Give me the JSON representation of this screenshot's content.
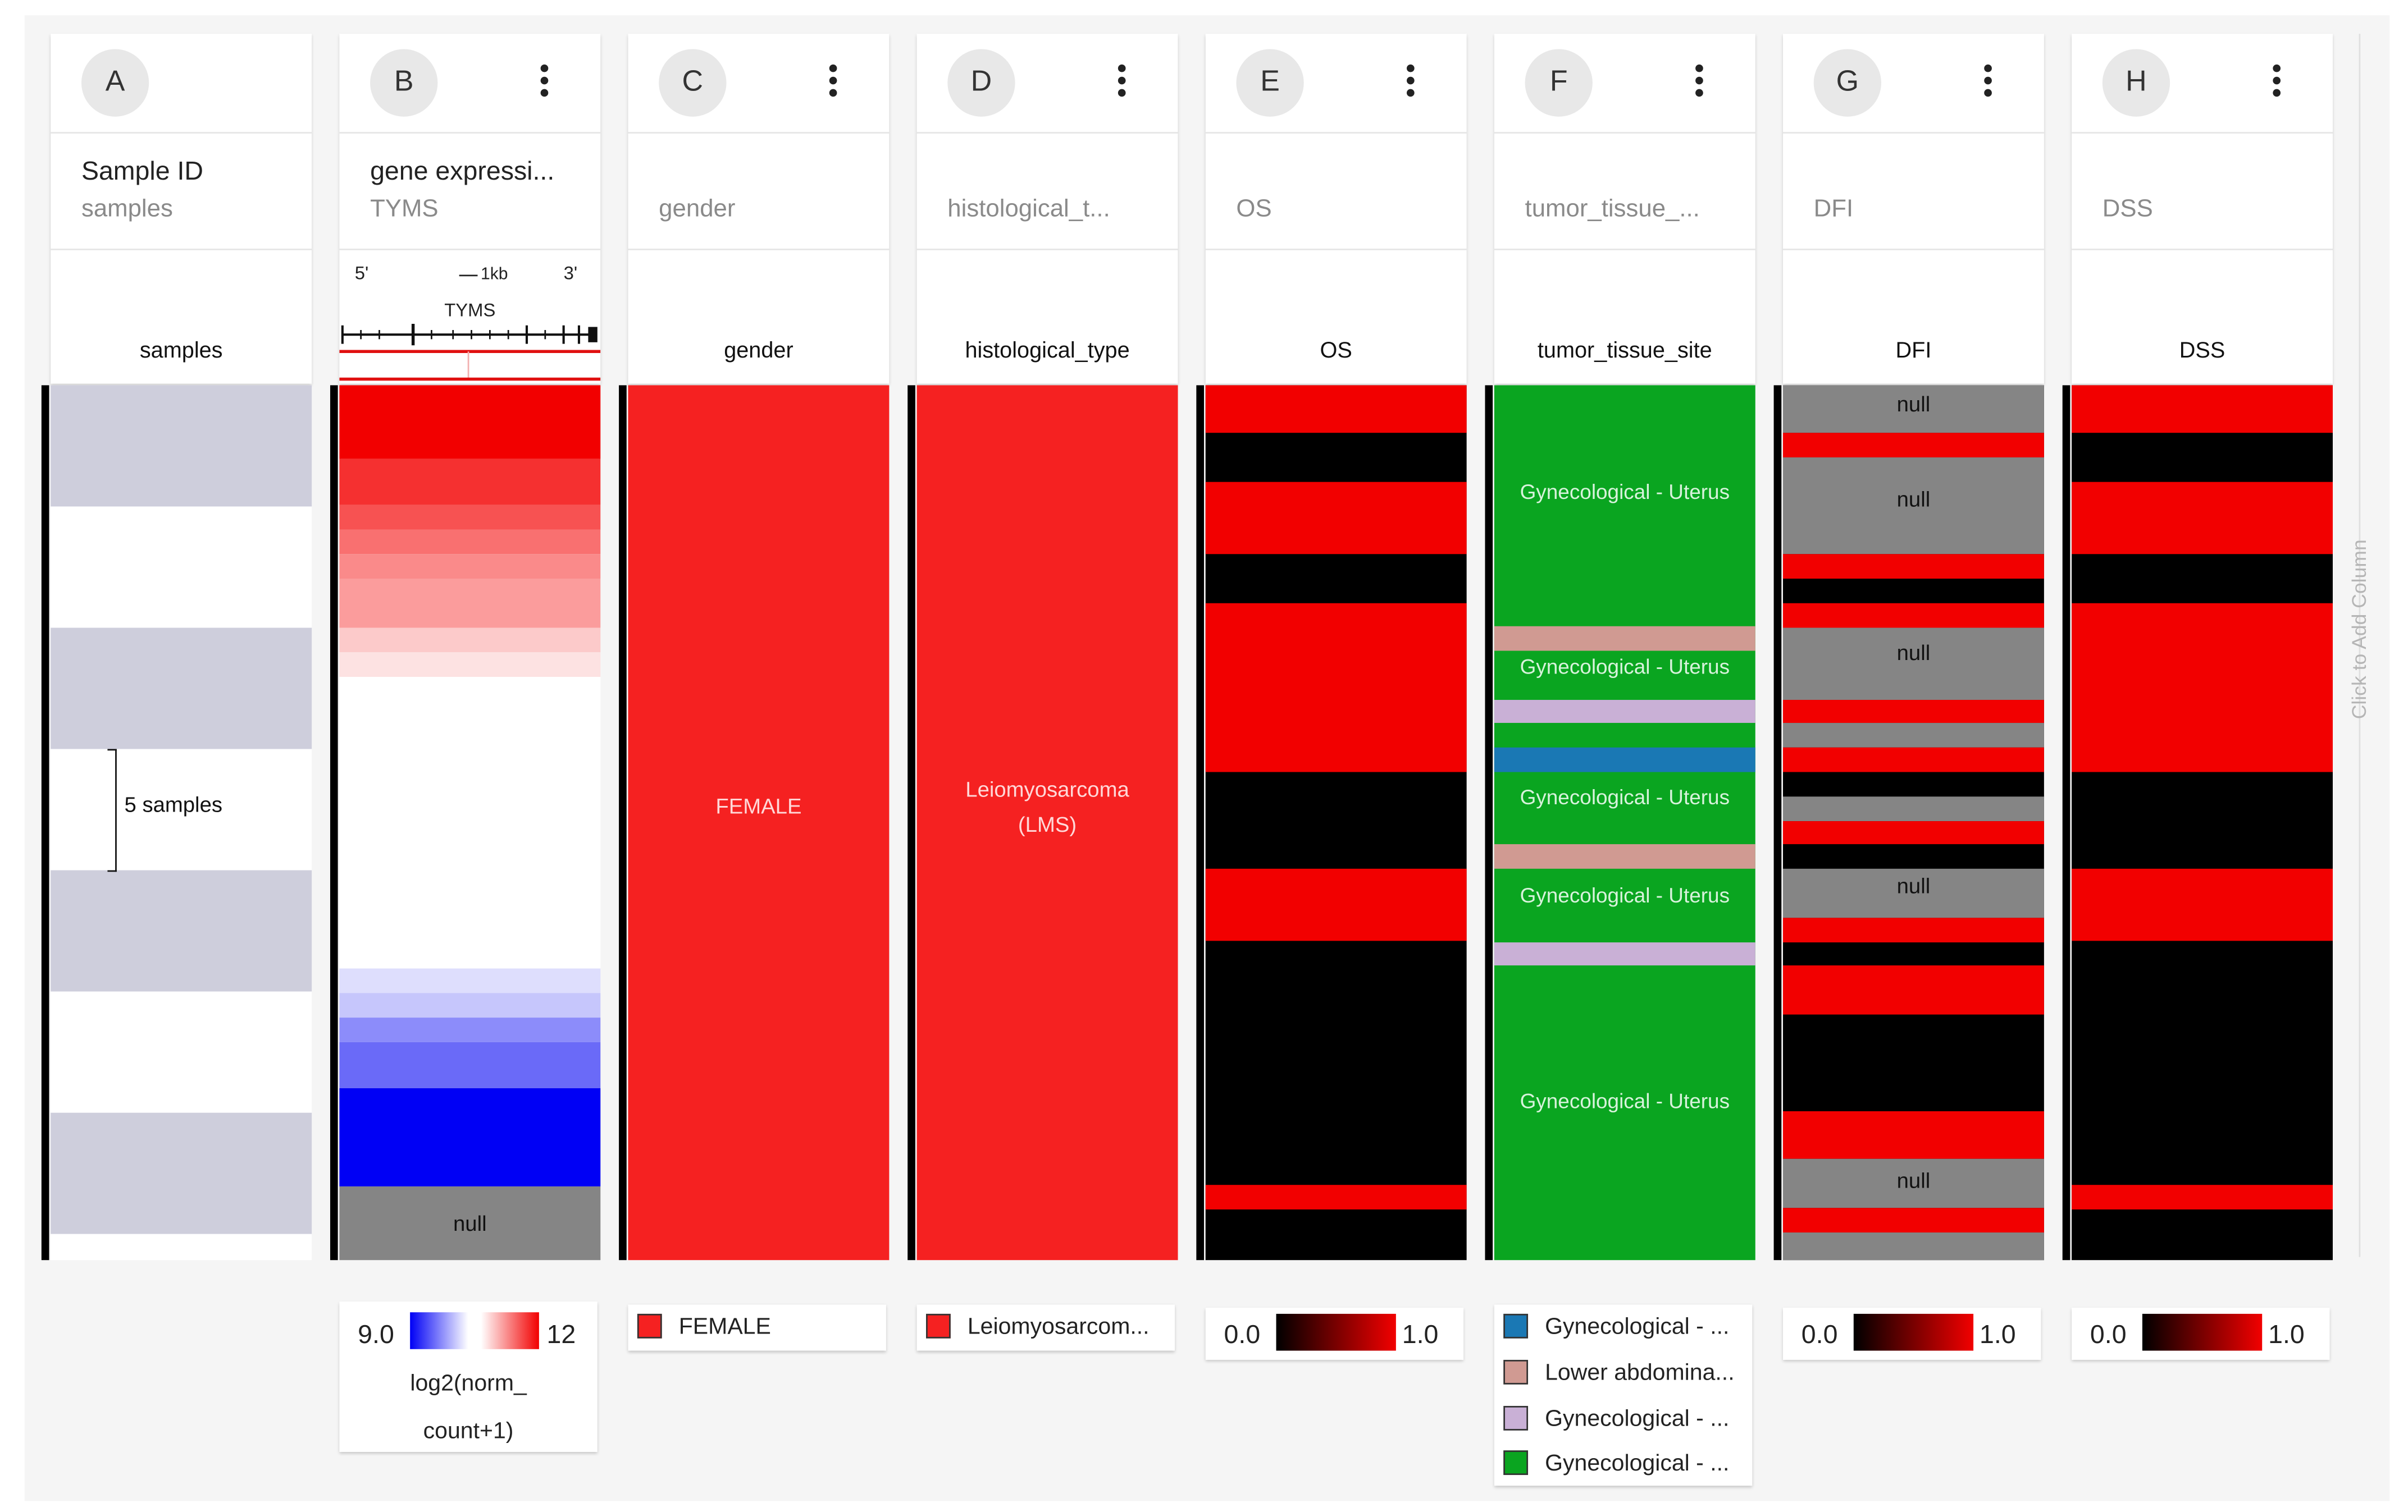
{
  "columns": [
    {
      "letter": "A",
      "title": "Sample ID",
      "subtitle": "samples",
      "field": "samples",
      "menu": false
    },
    {
      "letter": "B",
      "title": "gene expressi...",
      "subtitle": "TYMS",
      "field": "",
      "menu": true
    },
    {
      "letter": "C",
      "title": "",
      "subtitle": "gender",
      "field": "gender",
      "menu": true
    },
    {
      "letter": "D",
      "title": "",
      "subtitle": "histological_t...",
      "field": "histological_type",
      "menu": true
    },
    {
      "letter": "E",
      "title": "",
      "subtitle": "OS",
      "field": "OS",
      "menu": true
    },
    {
      "letter": "F",
      "title": "",
      "subtitle": "tumor_tissue_...",
      "field": "tumor_tissue_site",
      "menu": true
    },
    {
      "letter": "G",
      "title": "",
      "subtitle": "DFI",
      "field": "DFI",
      "menu": true
    },
    {
      "letter": "H",
      "title": "",
      "subtitle": "DSS",
      "field": "DSS",
      "menu": true
    }
  ],
  "gene_track": {
    "five_prime": "5'",
    "three_prime": "3'",
    "scale": "1kb",
    "gene": "TYMS"
  },
  "samples": {
    "bracket_label": "5 samples"
  },
  "gene_expression": {
    "null_label": "null",
    "legend_min": "9.0",
    "legend_max": "12",
    "legend_unit_1": "log2(norm_",
    "legend_unit_2": "count+1)"
  },
  "gender": {
    "value_label": "FEMALE",
    "legend_label": "FEMALE",
    "color": "#f52121"
  },
  "histological_type": {
    "value_line1": "Leiomyosarcoma",
    "value_line2": "(LMS)",
    "legend_label": "Leiomyosarcom...",
    "color": "#f52121"
  },
  "OS": {
    "legend_min": "0.0",
    "legend_max": "1.0"
  },
  "tumor_tissue_site": {
    "label": "Gynecological - Uterus",
    "legend": [
      {
        "label": "Gynecological - ...",
        "color": "#1a78b4"
      },
      {
        "label": "Lower abdomina...",
        "color": "#d09a92"
      },
      {
        "label": "Gynecological - ...",
        "color": "#c9b0d6"
      },
      {
        "label": "Gynecological - ...",
        "color": "#0aa520"
      }
    ]
  },
  "DFI": {
    "null_label": "null",
    "legend_min": "0.0",
    "legend_max": "1.0"
  },
  "DSS": {
    "legend_min": "0.0",
    "legend_max": "1.0"
  },
  "add_column": "Click to Add Column",
  "colors": {
    "red": "#f20000",
    "black": "#000000",
    "gray": "#858585",
    "green": "#0aa520",
    "blue": "#0000f5",
    "sample_band": "#cecedc"
  }
}
